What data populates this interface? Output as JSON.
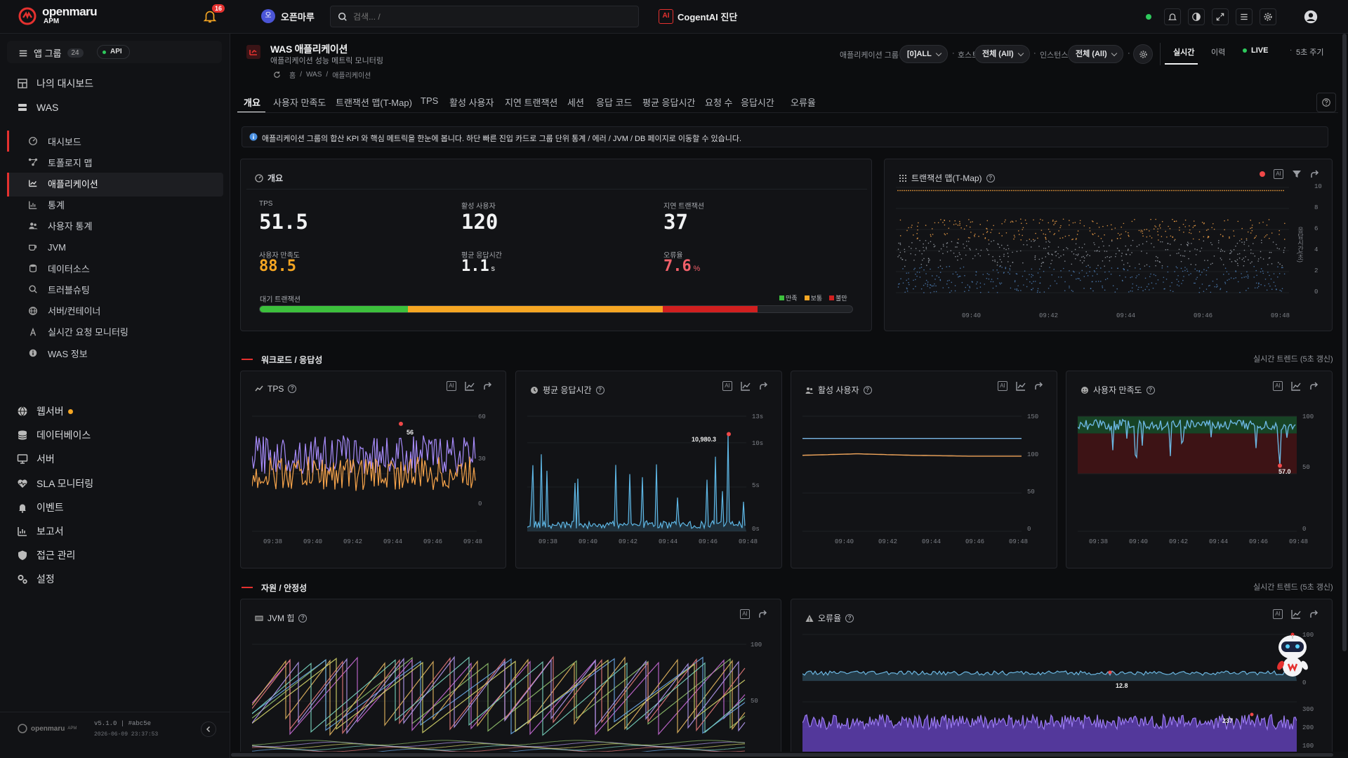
{
  "brand": {
    "logo_text": "openmaru",
    "product": "APM"
  },
  "topbar": {
    "notif_count": "16",
    "workspace": "오픈마루",
    "workspace_initial": "오",
    "search_placeholder": "검색... /",
    "ai_label": "CogentAI 진단",
    "ai_icon_text": "AI"
  },
  "sidebar": {
    "app_group_label": "앱 그룹",
    "app_group_count": "24",
    "api_label": "API",
    "items": [
      {
        "label": "나의 대시보드",
        "icon": "dashboard-grid-icon"
      },
      {
        "label": "WAS",
        "icon": "server-stack-icon"
      },
      {
        "label": "웹서버",
        "icon": "globe-icon"
      },
      {
        "label": "데이터베이스",
        "icon": "database-icon"
      },
      {
        "label": "서버",
        "icon": "monitor-icon"
      },
      {
        "label": "SLA 모니터링",
        "icon": "heart-pulse-icon"
      },
      {
        "label": "이벤트",
        "icon": "bell-icon"
      },
      {
        "label": "보고서",
        "icon": "report-chart-icon"
      },
      {
        "label": "접근 관리",
        "icon": "shield-icon"
      },
      {
        "label": "설정",
        "icon": "gears-icon"
      }
    ],
    "was_sub": [
      {
        "label": "대시보드",
        "icon": "gauge-icon"
      },
      {
        "label": "토폴로지 맵",
        "icon": "topology-icon"
      },
      {
        "label": "애플리케이션",
        "icon": "app-chart-icon"
      },
      {
        "label": "통계",
        "icon": "stats-icon"
      },
      {
        "label": "사용자 통계",
        "icon": "users-icon"
      },
      {
        "label": "JVM",
        "icon": "coffee-icon"
      },
      {
        "label": "데이터소스",
        "icon": "datasource-icon"
      },
      {
        "label": "트러블슈팅",
        "icon": "search-icon"
      },
      {
        "label": "서버/컨테이너",
        "icon": "container-icon"
      },
      {
        "label": "실시간 요청 모니터링",
        "icon": "realtime-icon"
      },
      {
        "label": "WAS 정보",
        "icon": "info-icon"
      }
    ],
    "footer_logo": "openmaru",
    "footer_logo_sub": "APM",
    "version": "v5.1.0 | #abc5e",
    "build_time": "2026-06-09 23:37:53"
  },
  "page": {
    "title": "WAS 애플리케이션",
    "subtitle": "애플리케이션 성능 메트릭 모니터링",
    "breadcrumb": [
      "홈",
      "WAS",
      "애플리케이션"
    ],
    "filters": {
      "group_label": "애플리케이션 그룹",
      "group_value": "[0]ALL",
      "host_label": "호스트",
      "host_value": "전체 (All)",
      "instance_label": "인스턴스",
      "instance_value": "전체 (All)"
    },
    "mode_tabs": [
      "실시간",
      "이력"
    ],
    "live_label": "LIVE",
    "interval": "5초 주기"
  },
  "tabs": [
    "개요",
    "사용자 만족도",
    "트랜잭션 맵(T-Map)",
    "TPS",
    "활성 사용자",
    "지연 트랜잭션",
    "세션",
    "응답 코드",
    "평균 응답시간",
    "요청 수",
    "응답시간",
    "오류율"
  ],
  "info_banner": "애플리케이션 그룹의 합산 KPI 와 핵심 메트릭을 한눈에 봅니다. 하단 빠른 진입 카드로 그룹 단위 통계 / 에러 / JVM / DB 페이지로 이동할 수 있습니다.",
  "overview": {
    "title": "개요",
    "kpis": [
      {
        "label": "TPS",
        "value": "51.5",
        "unit": "",
        "color": "#f1f2f3"
      },
      {
        "label": "활성 사용자",
        "value": "120",
        "unit": "",
        "color": "#f1f2f3"
      },
      {
        "label": "지연 트랜잭션",
        "value": "37",
        "unit": "",
        "color": "#f1f2f3"
      },
      {
        "label": "사용자 만족도",
        "value": "88.5",
        "unit": "",
        "color": "#f5a623"
      },
      {
        "label": "평균 응답시간",
        "value": "1.1",
        "unit": "s",
        "color": "#f1f2f3"
      },
      {
        "label": "오류율",
        "value": "7.6",
        "unit": "%",
        "color": "#f0606a"
      }
    ],
    "queue_label": "대기 트랜잭션",
    "queue_legend": [
      "만족",
      "보통",
      "불만"
    ],
    "queue_split": [
      0.25,
      0.43,
      0.16
    ],
    "queue_colors": [
      "#3cc03c",
      "#f5a623",
      "#d11f1f"
    ]
  },
  "sections": {
    "workload": "워크로드 / 응답성",
    "resource": "자원 / 안정성",
    "trend_note": "실시간 트렌드 (5초 갱신)"
  },
  "chart_data": [
    {
      "type": "scatter",
      "title": "트랜잭션 맵(T-Map)",
      "ylabel": "응답시간(초)",
      "y_ticks": [
        "10",
        "8",
        "6",
        "4",
        "2",
        "0"
      ],
      "x_ticks": [
        "09:40",
        "09:42",
        "09:44",
        "09:46",
        "09:48"
      ],
      "ylim": [
        0,
        10
      ]
    },
    {
      "type": "line",
      "title": "TPS",
      "y_ticks": [
        "60",
        "30",
        "0"
      ],
      "x_ticks": [
        "09:38",
        "09:40",
        "09:42",
        "09:44",
        "09:46",
        "09:48"
      ],
      "ylim": [
        0,
        60
      ],
      "series": [
        {
          "color": "#a78bfa"
        },
        {
          "color": "#f5a34a"
        }
      ],
      "annotation": "56"
    },
    {
      "type": "line",
      "title": "평균 응답시간",
      "y_ticks": [
        "13s",
        "10s",
        "5s",
        "0s"
      ],
      "x_ticks": [
        "09:38",
        "09:40",
        "09:42",
        "09:44",
        "09:46",
        "09:48"
      ],
      "ylim": [
        0,
        13000
      ],
      "series": [
        {
          "color": "#5eb6e4"
        }
      ],
      "annotation": "10,980.3"
    },
    {
      "type": "line",
      "title": "활성 사용자",
      "y_ticks": [
        "150",
        "100",
        "50",
        "0"
      ],
      "x_ticks": [
        "09:40",
        "09:42",
        "09:44",
        "09:46",
        "09:48"
      ],
      "ylim": [
        0,
        150
      ],
      "series": [
        {
          "color": "#7ab8e6",
          "values": [
            121,
            121,
            121,
            121,
            121
          ]
        },
        {
          "color": "#f2a65a",
          "values": [
            99,
            101,
            99,
            98,
            98
          ]
        }
      ]
    },
    {
      "type": "line",
      "title": "사용자 만족도",
      "y_ticks": [
        "100",
        "50",
        "0"
      ],
      "x_ticks": [
        "09:38",
        "09:40",
        "09:42",
        "09:44",
        "09:46",
        "09:48"
      ],
      "ylim": [
        0,
        100
      ],
      "series": [
        {
          "color": "#6bb6e0"
        }
      ],
      "annotation": "57.0"
    },
    {
      "type": "line",
      "title": "JVM 힙",
      "y_ticks": [
        "100",
        "50"
      ],
      "ylim": [
        0,
        100
      ]
    },
    {
      "type": "area",
      "title": "오류율",
      "y_ticks_top": [
        "100",
        "0"
      ],
      "y_ticks_bottom": [
        "300",
        "200",
        "100"
      ],
      "annotations": [
        "12.8",
        "237"
      ]
    }
  ]
}
